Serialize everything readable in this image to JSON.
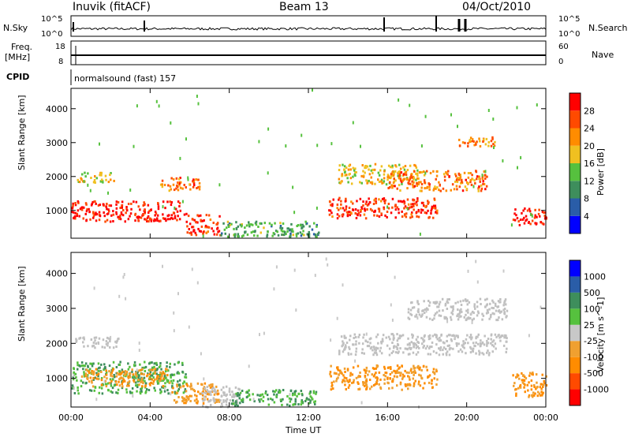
{
  "header": {
    "station": "Inuvik (fitACF)",
    "beam": "Beam 13",
    "date": "04/Oct/2010"
  },
  "strips": {
    "nsky_label": "N.Sky",
    "nsky_ticks": [
      "10^5",
      "10^0"
    ],
    "nsearch_label": "N.Search",
    "nsearch_ticks": [
      "10^5",
      "10^0"
    ],
    "freq_label": "Freq.",
    "freq_unit": "[MHz]",
    "freq_ticks": [
      "18",
      "8"
    ],
    "nave_label": "Nave",
    "nave_ticks": [
      "60",
      "0"
    ],
    "cpid_label": "CPID",
    "cpid_value": "normalsound (fast) 157"
  },
  "colors": {
    "power_scale": [
      "#0000ff",
      "#2a5da8",
      "#3e8e5c",
      "#56c13e",
      "#f0c020",
      "#ff8c00",
      "#ff4a00",
      "#ff0000"
    ],
    "velocity_scale": [
      "#ff0000",
      "#ff4a00",
      "#ff8c00",
      "#f0a030",
      "#c8c8c8",
      "#56c13e",
      "#3e8e5c",
      "#2a5da8",
      "#0000ff"
    ],
    "ground_scatter": "#c0c0c0"
  },
  "chart_data": [
    {
      "type": "heatmap",
      "panel": "power",
      "ylabel": "Slant Range [km]",
      "xlabel": "",
      "colorbar_label": "Power [dB]",
      "colorbar_ticks": [
        "4",
        "8",
        "12",
        "16",
        "20",
        "24",
        "28"
      ],
      "x_ticks": [
        "00:00",
        "04:00",
        "08:00",
        "12:00",
        "16:00",
        "20:00",
        "00:00"
      ],
      "y_ticks": [
        "1000",
        "2000",
        "3000",
        "4000"
      ],
      "xlim_hours": [
        0,
        24
      ],
      "ylim_km": [
        180,
        4600
      ],
      "series": [
        {
          "t": [
            0.0,
            5.8
          ],
          "range": [
            700,
            1300
          ],
          "value_db": 28
        },
        {
          "t": [
            0.3,
            2.2
          ],
          "range": [
            1850,
            2150
          ],
          "value_db": 16
        },
        {
          "t": [
            4.5,
            6.5
          ],
          "range": [
            1600,
            2000
          ],
          "value_db": 22
        },
        {
          "t": [
            5.8,
            7.5
          ],
          "range": [
            300,
            900
          ],
          "value_db": 26
        },
        {
          "t": [
            7.5,
            12.5
          ],
          "range": [
            250,
            700
          ],
          "value_db": 10
        },
        {
          "t": [
            13.0,
            18.5
          ],
          "range": [
            800,
            1400
          ],
          "value_db": 26
        },
        {
          "t": [
            13.5,
            17.5
          ],
          "range": [
            1800,
            2400
          ],
          "value_db": 16
        },
        {
          "t": [
            16.0,
            21.0
          ],
          "range": [
            1600,
            2200
          ],
          "value_db": 22
        },
        {
          "t": [
            19.5,
            21.5
          ],
          "range": [
            2900,
            3200
          ],
          "value_db": 20
        },
        {
          "t": [
            22.3,
            24.0
          ],
          "range": [
            600,
            1100
          ],
          "value_db": 28
        }
      ]
    },
    {
      "type": "heatmap",
      "panel": "velocity",
      "ylabel": "Slant Range [km]",
      "xlabel": "Time UT",
      "colorbar_label": "Velocity [m s^-1]",
      "colorbar_ticks": [
        "1000",
        "500",
        "100",
        "25",
        "-25",
        "-100",
        "-500",
        "-1000"
      ],
      "x_ticks": [
        "00:00",
        "04:00",
        "08:00",
        "12:00",
        "16:00",
        "20:00",
        "00:00"
      ],
      "y_ticks": [
        "1000",
        "2000",
        "3000",
        "4000"
      ],
      "xlim_hours": [
        0,
        24
      ],
      "ylim_km": [
        180,
        4600
      ],
      "series": [
        {
          "t": [
            0.0,
            5.8
          ],
          "range": [
            600,
            1500
          ],
          "value_ms": 100
        },
        {
          "t": [
            0.5,
            5.0
          ],
          "range": [
            800,
            1300
          ],
          "value_ms": -100
        },
        {
          "t": [
            5.0,
            7.5
          ],
          "range": [
            300,
            900
          ],
          "value_ms": -100
        },
        {
          "t": [
            6.5,
            8.5
          ],
          "range": [
            200,
            800
          ],
          "value_ms": 0
        },
        {
          "t": [
            0.2,
            2.5
          ],
          "range": [
            1900,
            2200
          ],
          "value_ms": 0
        },
        {
          "t": [
            8.0,
            12.5
          ],
          "range": [
            250,
            700
          ],
          "value_ms": 100
        },
        {
          "t": [
            13.0,
            18.5
          ],
          "range": [
            700,
            1400
          ],
          "value_ms": -100
        },
        {
          "t": [
            13.5,
            22.0
          ],
          "range": [
            1700,
            2300
          ],
          "value_ms": 0
        },
        {
          "t": [
            17.0,
            22.0
          ],
          "range": [
            2700,
            3300
          ],
          "value_ms": 0
        },
        {
          "t": [
            22.3,
            24.0
          ],
          "range": [
            500,
            1200
          ],
          "value_ms": -100
        }
      ]
    }
  ]
}
